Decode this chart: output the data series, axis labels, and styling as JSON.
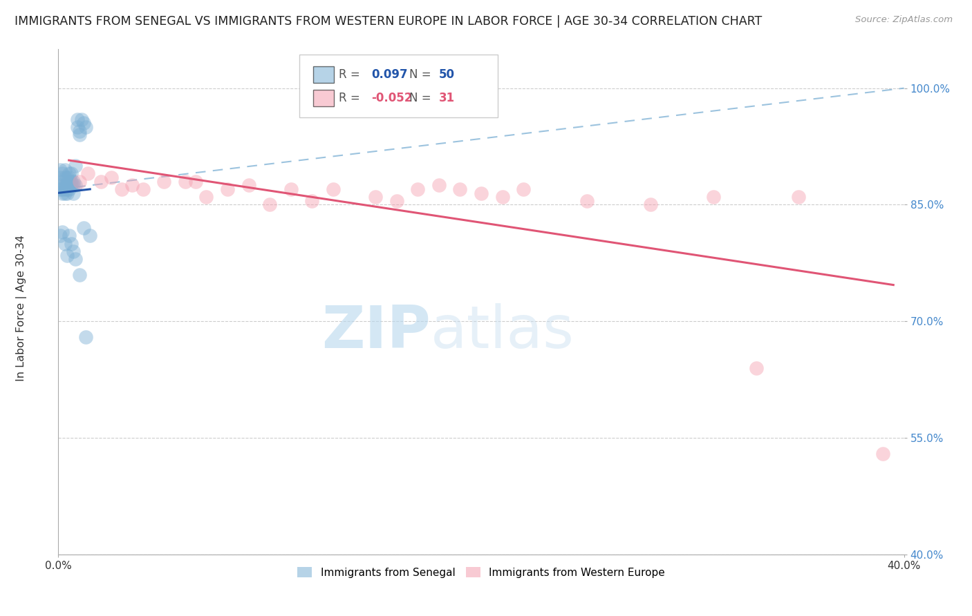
{
  "title": "IMMIGRANTS FROM SENEGAL VS IMMIGRANTS FROM WESTERN EUROPE IN LABOR FORCE | AGE 30-34 CORRELATION CHART",
  "source": "Source: ZipAtlas.com",
  "ylabel": "In Labor Force | Age 30-34",
  "xmin": 0.0,
  "xmax": 0.4,
  "ymin": 0.4,
  "ymax": 1.05,
  "yticks": [
    0.4,
    0.55,
    0.7,
    0.85,
    1.0
  ],
  "ytick_labels": [
    "40.0%",
    "55.0%",
    "70.0%",
    "85.0%",
    "100.0%"
  ],
  "xtick_labels": [
    "0.0%",
    "",
    "",
    "",
    "40.0%"
  ],
  "R_senegal": 0.097,
  "N_senegal": 50,
  "R_western": -0.052,
  "N_western": 31,
  "senegal_color": "#7bafd4",
  "western_color": "#f4a0b0",
  "senegal_line_color": "#2255aa",
  "western_line_color": "#e05575",
  "senegal_scatter_x": [
    0.001,
    0.001,
    0.001,
    0.002,
    0.002,
    0.002,
    0.003,
    0.003,
    0.003,
    0.003,
    0.004,
    0.004,
    0.004,
    0.004,
    0.005,
    0.005,
    0.005,
    0.005,
    0.006,
    0.006,
    0.007,
    0.007,
    0.008,
    0.009,
    0.009,
    0.01,
    0.01,
    0.011,
    0.012,
    0.013,
    0.001,
    0.002,
    0.003,
    0.004,
    0.005,
    0.006,
    0.007,
    0.008,
    0.012,
    0.015,
    0.001,
    0.002,
    0.003,
    0.004,
    0.005,
    0.006,
    0.007,
    0.008,
    0.01,
    0.013
  ],
  "senegal_scatter_y": [
    0.875,
    0.895,
    0.885,
    0.87,
    0.88,
    0.89,
    0.875,
    0.885,
    0.895,
    0.865,
    0.875,
    0.885,
    0.875,
    0.87,
    0.88,
    0.89,
    0.875,
    0.885,
    0.89,
    0.88,
    0.875,
    0.88,
    0.9,
    0.96,
    0.95,
    0.945,
    0.94,
    0.96,
    0.955,
    0.95,
    0.87,
    0.865,
    0.87,
    0.865,
    0.87,
    0.875,
    0.865,
    0.875,
    0.82,
    0.81,
    0.81,
    0.815,
    0.8,
    0.785,
    0.81,
    0.8,
    0.79,
    0.78,
    0.76,
    0.68
  ],
  "western_scatter_x": [
    0.01,
    0.014,
    0.02,
    0.025,
    0.03,
    0.035,
    0.04,
    0.05,
    0.06,
    0.065,
    0.07,
    0.08,
    0.09,
    0.1,
    0.11,
    0.12,
    0.13,
    0.15,
    0.16,
    0.17,
    0.18,
    0.19,
    0.2,
    0.21,
    0.22,
    0.25,
    0.28,
    0.31,
    0.33,
    0.35,
    0.39
  ],
  "western_scatter_y": [
    0.88,
    0.89,
    0.88,
    0.885,
    0.87,
    0.875,
    0.87,
    0.88,
    0.88,
    0.88,
    0.86,
    0.87,
    0.875,
    0.85,
    0.87,
    0.855,
    0.87,
    0.86,
    0.855,
    0.87,
    0.875,
    0.87,
    0.865,
    0.86,
    0.87,
    0.855,
    0.85,
    0.86,
    0.64,
    0.86,
    0.53
  ],
  "watermark_zip": "ZIP",
  "watermark_atlas": "atlas",
  "dashed_line_x": [
    0.0,
    0.4
  ],
  "dashed_line_y": [
    0.87,
    1.0
  ]
}
